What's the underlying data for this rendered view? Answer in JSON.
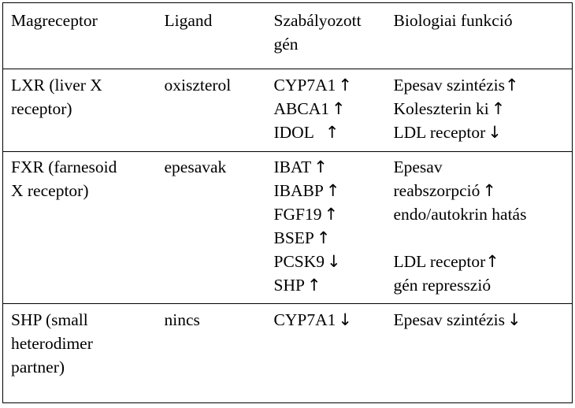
{
  "header": {
    "col1": "Magreceptor",
    "col2": "Ligand",
    "col3_line1": "Szabályozott",
    "col3_line2": "gén",
    "col4": "Biologiai funkció"
  },
  "rows": [
    {
      "receptor": [
        "LXR (liver X",
        "receptor)"
      ],
      "ligand": "oxiszterol",
      "genes": [
        {
          "name": "CYP7A1",
          "arrow": "↑"
        },
        {
          "name": "ABCA1",
          "arrow": "↑"
        },
        {
          "name": "IDOL",
          "arrow": "↑"
        }
      ],
      "functions": [
        {
          "text": "Epesav szintézis",
          "arrow": "↑"
        },
        {
          "text": "Koleszterin ki",
          "arrow": "↑"
        },
        {
          "text": "LDL receptor",
          "arrow": "↓"
        }
      ]
    },
    {
      "receptor": [
        "FXR (farnesoid",
        "X receptor)"
      ],
      "ligand": "epesavak",
      "genes": [
        {
          "name": "IBAT",
          "arrow": "↑"
        },
        {
          "name": "IBABP",
          "arrow": "↑"
        },
        {
          "name": "FGF19",
          "arrow": "↑"
        },
        {
          "name": "BSEP",
          "arrow": "↑"
        },
        {
          "name": "PCSK9",
          "arrow": "↓"
        },
        {
          "name": "SHP",
          "arrow": "↑"
        }
      ],
      "functions": [
        {
          "text": "Epesav",
          "arrow": ""
        },
        {
          "text": "reabszorpció",
          "arrow": "↑"
        },
        {
          "text": "endo/autokrin hatás",
          "arrow": ""
        },
        {
          "text": "",
          "arrow": ""
        },
        {
          "text": "LDL receptor",
          "arrow": "↑"
        },
        {
          "text": "gén represszió",
          "arrow": ""
        }
      ]
    },
    {
      "receptor": [
        "SHP (small",
        "heterodimer",
        "partner)"
      ],
      "ligand": "nincs",
      "genes": [
        {
          "name": "CYP7A1",
          "arrow": "↓"
        }
      ],
      "functions": [
        {
          "text": "Epesav szintézis",
          "arrow": "↓"
        }
      ]
    }
  ]
}
